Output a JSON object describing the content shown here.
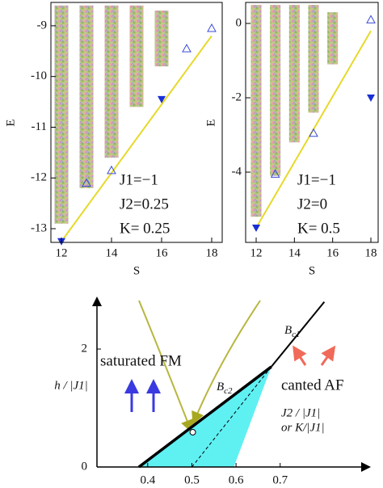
{
  "chart_data": [
    {
      "type": "scatter",
      "x_label": "S",
      "y_label": "E",
      "xlim": [
        11.58,
        18.42
      ],
      "ylim": [
        -13.27,
        -8.54
      ],
      "xticks": [
        12,
        14,
        16,
        18
      ],
      "yticks": [
        -13,
        -12,
        -11,
        -10,
        -9
      ],
      "annotations": [
        "J1=−1",
        "J2=0.25",
        "K=  0.25"
      ],
      "bands": {
        "x": [
          12,
          13,
          14,
          15,
          16
        ],
        "low": [
          -12.9,
          -12.2,
          -11.6,
          -10.6,
          -9.8
        ],
        "high": [
          -8.6,
          -8.6,
          -8.6,
          -8.6,
          -8.7
        ]
      },
      "ground_states": {
        "x": [
          12,
          16
        ],
        "y": [
          -13.25,
          -10.45
        ],
        "color": "#1a2fd6"
      },
      "excited_states": {
        "x": [
          13,
          14,
          17,
          18
        ],
        "y": [
          -12.1,
          -11.85,
          -9.45,
          -9.05
        ],
        "color": "#3a4bd8"
      },
      "line": {
        "x": [
          12,
          18
        ],
        "y": [
          -13.25,
          -9.2
        ],
        "color": "#e6d92a"
      }
    },
    {
      "type": "scatter",
      "x_label": "S",
      "y_label": "E",
      "xlim": [
        11.45,
        18.38
      ],
      "ylim": [
        -5.89,
        0.565
      ],
      "xticks": [
        12,
        14,
        16,
        18
      ],
      "yticks": [
        -4,
        -2,
        0
      ],
      "annotations": [
        "J1=−1",
        "J2=0",
        "K=  0.5"
      ],
      "bands": {
        "x": [
          12,
          13,
          14,
          15,
          16
        ],
        "low": [
          -5.2,
          -4.1,
          -3.2,
          -2.4,
          -1.1
        ],
        "high": [
          0.5,
          0.5,
          0.5,
          0.5,
          0.3
        ]
      },
      "ground_states": {
        "x": [
          12,
          18
        ],
        "y": [
          -5.5,
          -2.0
        ],
        "color": "#1a2fd6"
      },
      "excited_states": {
        "x": [
          13,
          15,
          18
        ],
        "y": [
          -4.05,
          -2.95,
          0.1
        ],
        "color": "#3a4bd8"
      },
      "line": {
        "x": [
          12,
          18
        ],
        "y": [
          -5.5,
          -0.2
        ],
        "color": "#e6d92a"
      }
    },
    {
      "type": "line",
      "y_label": "h / |J1|",
      "x_label": "J2 / |J1|",
      "x_label2": "or K/|J1|",
      "xlim": [
        0.285,
        0.9
      ],
      "ylim": [
        0,
        2.85
      ],
      "xticks": [
        0.4,
        0.5,
        0.6,
        0.7
      ],
      "yticks": [
        0,
        2
      ],
      "phases": [
        "saturated FM",
        "canted AF"
      ],
      "curves": [
        {
          "label": {
            "text": "B",
            "sub": "c2"
          },
          "x": [
            0.38,
            0.68
          ],
          "y": [
            0,
            1.7
          ]
        },
        {
          "label": {
            "text": "B",
            "sub": "c1"
          },
          "x": [
            0.68,
            0.8
          ],
          "y": [
            1.7,
            2.8
          ]
        }
      ],
      "dashed": {
        "x": [
          0.5,
          0.68
        ],
        "y": [
          0,
          1.7
        ]
      },
      "region": {
        "x": [
          0.38,
          0.68,
          0.595
        ],
        "y": [
          0,
          1.7,
          0
        ],
        "color": "#5ff0f2"
      },
      "point": {
        "x": 0.502,
        "y": 0.59
      }
    }
  ]
}
